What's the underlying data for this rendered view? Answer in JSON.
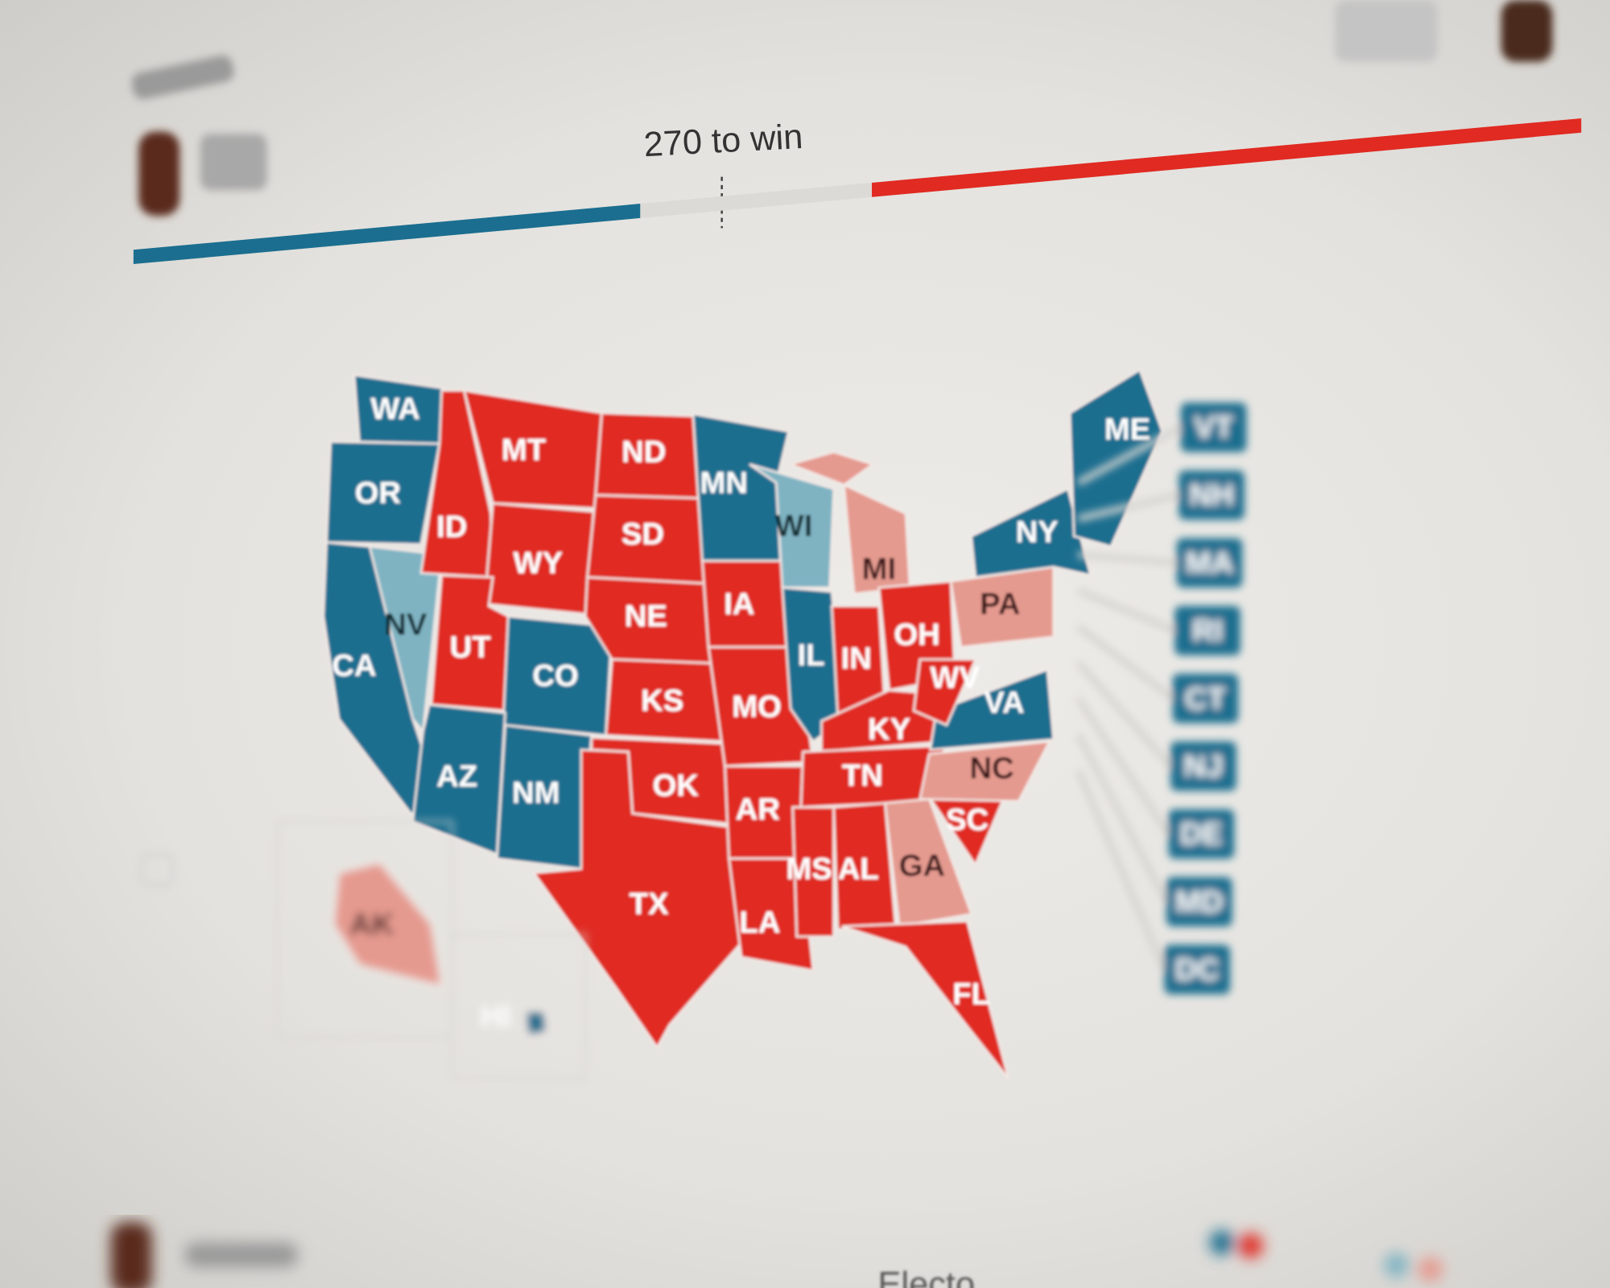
{
  "header": {
    "threshold_label": "270 to win"
  },
  "progress": {
    "blue_fraction": 0.35,
    "red_fraction": 0.49
  },
  "colors": {
    "blue": "#1b6e8f",
    "light_blue": "#7fb3c2",
    "red": "#e02a22",
    "pink": "#e59a8f",
    "background": "#e8e6e2"
  },
  "map": {
    "states": [
      {
        "code": "WA",
        "party": "blue"
      },
      {
        "code": "OR",
        "party": "blue"
      },
      {
        "code": "CA",
        "party": "blue"
      },
      {
        "code": "NV",
        "party": "light_blue"
      },
      {
        "code": "ID",
        "party": "red"
      },
      {
        "code": "MT",
        "party": "red"
      },
      {
        "code": "WY",
        "party": "red"
      },
      {
        "code": "UT",
        "party": "red"
      },
      {
        "code": "CO",
        "party": "blue"
      },
      {
        "code": "AZ",
        "party": "blue"
      },
      {
        "code": "NM",
        "party": "blue"
      },
      {
        "code": "ND",
        "party": "red"
      },
      {
        "code": "SD",
        "party": "red"
      },
      {
        "code": "NE",
        "party": "red"
      },
      {
        "code": "KS",
        "party": "red"
      },
      {
        "code": "OK",
        "party": "red"
      },
      {
        "code": "TX",
        "party": "red"
      },
      {
        "code": "MN",
        "party": "blue"
      },
      {
        "code": "IA",
        "party": "red"
      },
      {
        "code": "MO",
        "party": "red"
      },
      {
        "code": "AR",
        "party": "red"
      },
      {
        "code": "LA",
        "party": "red"
      },
      {
        "code": "WI",
        "party": "light_blue"
      },
      {
        "code": "IL",
        "party": "blue"
      },
      {
        "code": "MI",
        "party": "pink"
      },
      {
        "code": "IN",
        "party": "red"
      },
      {
        "code": "OH",
        "party": "red"
      },
      {
        "code": "KY",
        "party": "red"
      },
      {
        "code": "TN",
        "party": "red"
      },
      {
        "code": "MS",
        "party": "red"
      },
      {
        "code": "AL",
        "party": "red"
      },
      {
        "code": "GA",
        "party": "pink"
      },
      {
        "code": "SC",
        "party": "red"
      },
      {
        "code": "NC",
        "party": "pink"
      },
      {
        "code": "VA",
        "party": "blue"
      },
      {
        "code": "WV",
        "party": "red"
      },
      {
        "code": "PA",
        "party": "pink"
      },
      {
        "code": "NY",
        "party": "blue"
      },
      {
        "code": "ME",
        "party": "blue"
      },
      {
        "code": "FL",
        "party": "red"
      },
      {
        "code": "AK",
        "party": "pink"
      },
      {
        "code": "HI",
        "party": "blue"
      }
    ],
    "small_states": [
      {
        "code": "VT",
        "party": "blue"
      },
      {
        "code": "NH",
        "party": "blue"
      },
      {
        "code": "MA",
        "party": "blue"
      },
      {
        "code": "RI",
        "party": "blue"
      },
      {
        "code": "CT",
        "party": "blue"
      },
      {
        "code": "NJ",
        "party": "blue"
      },
      {
        "code": "DE",
        "party": "blue"
      },
      {
        "code": "MD",
        "party": "blue"
      },
      {
        "code": "DC",
        "party": "blue"
      }
    ]
  },
  "footer": {
    "section_label": "Electo"
  }
}
